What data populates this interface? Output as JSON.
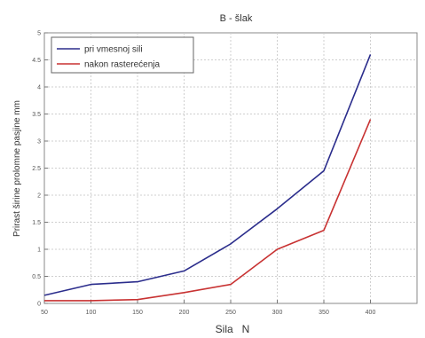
{
  "chart_data": {
    "type": "line",
    "title": "B - šlak",
    "xlabel": "Sila   N",
    "ylabel": "Prirast širine prolomne pasjine  mm",
    "xlim": [
      50,
      450
    ],
    "ylim": [
      0,
      5
    ],
    "x_ticks": [
      "50",
      "100",
      "150",
      "200",
      "250",
      "300",
      "350",
      "400"
    ],
    "x_tick_values": [
      50,
      100,
      150,
      200,
      250,
      300,
      350,
      400
    ],
    "y_ticks": [
      "0",
      "0.5",
      "1",
      "1.5",
      "2",
      "2.5",
      "3",
      "3.5",
      "4",
      "4.5",
      "5"
    ],
    "y_tick_values": [
      0,
      0.5,
      1,
      1.5,
      2,
      2.5,
      3,
      3.5,
      4,
      4.5,
      5
    ],
    "x": [
      50,
      100,
      150,
      200,
      250,
      300,
      350,
      400
    ],
    "series": [
      {
        "name": "pri vmesnoj sili",
        "color": "#2b2d8c",
        "values": [
          0.15,
          0.35,
          0.4,
          0.6,
          1.1,
          1.75,
          2.45,
          4.6
        ]
      },
      {
        "name": "nakon rasterećenja",
        "color": "#c83232",
        "values": [
          0.05,
          0.05,
          0.07,
          0.2,
          0.35,
          1.0,
          1.35,
          3.4
        ]
      }
    ],
    "grid": true,
    "legend": "top-left"
  }
}
